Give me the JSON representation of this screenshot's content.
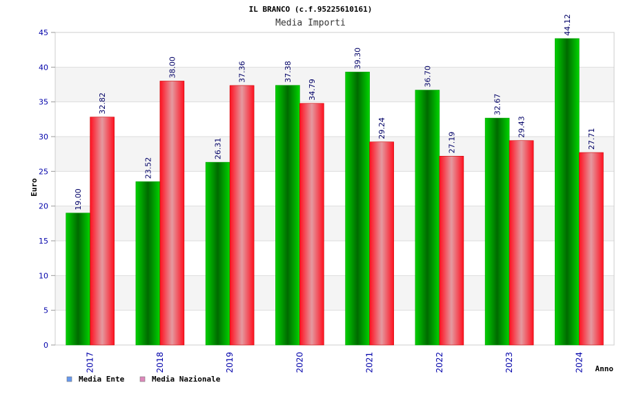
{
  "chart_data": {
    "type": "bar",
    "title": "IL BRANCO (c.f.95225610161)",
    "subtitle": "Media Importi",
    "xlabel": "Anno",
    "ylabel": "Euro",
    "ylim": [
      0,
      45
    ],
    "yticks": [
      "0",
      "5",
      "10",
      "15",
      "20",
      "25",
      "30",
      "35",
      "40",
      "45"
    ],
    "grid": true,
    "legend_position": "bottom-left",
    "categories": [
      "2017",
      "2018",
      "2019",
      "2020",
      "2021",
      "2022",
      "2023",
      "2024"
    ],
    "series": [
      {
        "name": "Media Ente",
        "values": [
          19.0,
          23.52,
          26.31,
          37.38,
          39.3,
          36.7,
          32.67,
          44.12
        ],
        "labels": [
          "19.00",
          "23.52",
          "26.31",
          "37.38",
          "39.30",
          "36.70",
          "32.67",
          "44.12"
        ],
        "color": "#00cc00",
        "legend_color": "#6699ee"
      },
      {
        "name": "Media Nazionale",
        "values": [
          32.82,
          38.0,
          37.36,
          34.79,
          29.24,
          27.19,
          29.43,
          27.71
        ],
        "labels": [
          "32.82",
          "38.00",
          "37.36",
          "34.79",
          "29.24",
          "27.19",
          "29.43",
          "27.71"
        ],
        "color": "#ff0000",
        "legend_color": "#dd88bb"
      }
    ]
  }
}
